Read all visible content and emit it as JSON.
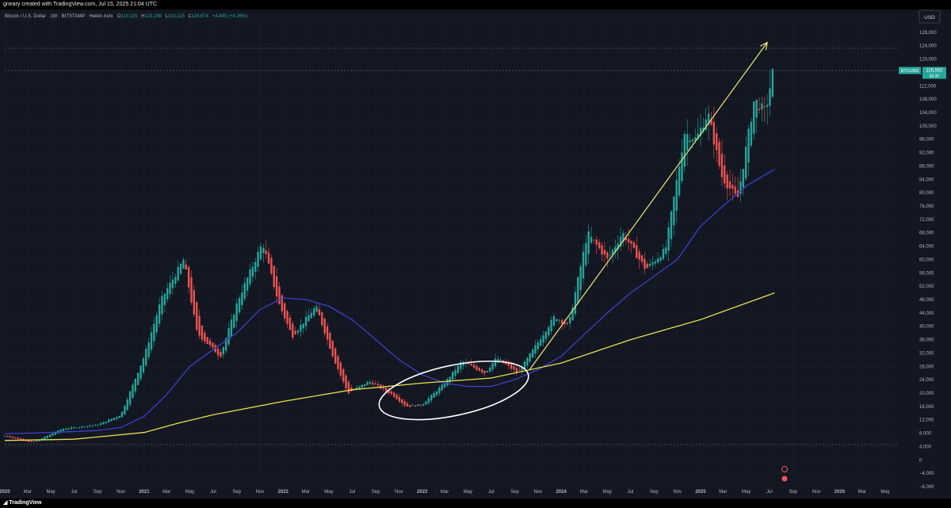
{
  "header": {
    "attribution": "gneary created with TradingView.com, Jul 15, 2025 21:04 UTC"
  },
  "footer": {
    "brand": "TradingView"
  },
  "legend": {
    "symbol_desc": "Bitcoin / U.S. Dollar · 1W · BITSTAMP · Heikin Ashi",
    "o_label": "O",
    "o_value": "110,115",
    "h_label": "H",
    "h_value": "123,236",
    "l_label": "L",
    "l_value": "110,115",
    "c_label": "C",
    "c_value": "116,674",
    "change": "+4,845 (+4.26%)"
  },
  "currency_button": "USD",
  "price_tag": {
    "symbol": "BTCUSD",
    "price": "116,592",
    "countdown": "5d 3h"
  },
  "colors": {
    "background": "#131722",
    "up": "#26a69a",
    "down": "#ef5350",
    "ma_short": "#3f3fc8",
    "ma_long": "#e8e04c",
    "arrow": "#efe87a",
    "ellipse": "#ffffff"
  },
  "chart_data": {
    "type": "candlestick",
    "style": "Heikin Ashi",
    "timeframe": "1W",
    "y_axis": {
      "range": [
        -8000,
        132000
      ],
      "ticks": [
        -8000,
        -4000,
        0,
        4000,
        8000,
        12000,
        16000,
        20000,
        24000,
        28000,
        32000,
        36000,
        40000,
        44000,
        48000,
        52000,
        56000,
        60000,
        64000,
        68000,
        72000,
        76000,
        80000,
        84000,
        88000,
        92000,
        96000,
        100000,
        104000,
        108000,
        112000,
        116000,
        120000,
        124000,
        128000,
        132000
      ]
    },
    "x_axis": {
      "range": [
        "2020-01-01",
        "2026-06-01"
      ],
      "ticks": [
        {
          "date": "2020-01-01",
          "label": "2020",
          "bold": true
        },
        {
          "date": "2020-03-01",
          "label": "Mar"
        },
        {
          "date": "2020-05-01",
          "label": "May"
        },
        {
          "date": "2020-07-01",
          "label": "Jul"
        },
        {
          "date": "2020-09-01",
          "label": "Sep"
        },
        {
          "date": "2020-11-01",
          "label": "Nov"
        },
        {
          "date": "2021-01-01",
          "label": "2021",
          "bold": true
        },
        {
          "date": "2021-03-01",
          "label": "Mar"
        },
        {
          "date": "2021-05-01",
          "label": "May"
        },
        {
          "date": "2021-07-01",
          "label": "Jul"
        },
        {
          "date": "2021-09-01",
          "label": "Sep"
        },
        {
          "date": "2021-11-01",
          "label": "Nov"
        },
        {
          "date": "2022-01-01",
          "label": "2022",
          "bold": true
        },
        {
          "date": "2022-03-01",
          "label": "Mar"
        },
        {
          "date": "2022-05-01",
          "label": "May"
        },
        {
          "date": "2022-07-01",
          "label": "Jul"
        },
        {
          "date": "2022-09-01",
          "label": "Sep"
        },
        {
          "date": "2022-11-01",
          "label": "Nov"
        },
        {
          "date": "2023-01-01",
          "label": "2023",
          "bold": true
        },
        {
          "date": "2023-03-01",
          "label": "Mar"
        },
        {
          "date": "2023-05-01",
          "label": "May"
        },
        {
          "date": "2023-07-01",
          "label": "Jul"
        },
        {
          "date": "2023-09-01",
          "label": "Sep"
        },
        {
          "date": "2023-11-01",
          "label": "Nov"
        },
        {
          "date": "2024-01-01",
          "label": "2024",
          "bold": true
        },
        {
          "date": "2024-03-01",
          "label": "Mar"
        },
        {
          "date": "2024-05-01",
          "label": "May"
        },
        {
          "date": "2024-07-01",
          "label": "Jul"
        },
        {
          "date": "2024-09-01",
          "label": "Sep"
        },
        {
          "date": "2024-11-01",
          "label": "Nov"
        },
        {
          "date": "2025-01-01",
          "label": "2025",
          "bold": true
        },
        {
          "date": "2025-03-01",
          "label": "Mar"
        },
        {
          "date": "2025-05-01",
          "label": "May"
        },
        {
          "date": "2025-07-01",
          "label": "Jul"
        },
        {
          "date": "2025-09-01",
          "label": "Sep"
        },
        {
          "date": "2025-11-01",
          "label": "Nov"
        },
        {
          "date": "2026-01-01",
          "label": "2026",
          "bold": true
        },
        {
          "date": "2026-03-01",
          "label": "Mar"
        },
        {
          "date": "2026-05-01",
          "label": "May"
        }
      ]
    },
    "price_key_points": [
      [
        "2020-01-01",
        7200
      ],
      [
        "2020-03-15",
        5200
      ],
      [
        "2020-06-01",
        9300
      ],
      [
        "2020-09-01",
        10500
      ],
      [
        "2020-11-01",
        13500
      ],
      [
        "2021-01-01",
        31000
      ],
      [
        "2021-02-15",
        48000
      ],
      [
        "2021-04-15",
        60000
      ],
      [
        "2021-05-20",
        38000
      ],
      [
        "2021-07-20",
        31000
      ],
      [
        "2021-09-05",
        48000
      ],
      [
        "2021-11-08",
        65000
      ],
      [
        "2021-12-20",
        47000
      ],
      [
        "2022-01-25",
        37000
      ],
      [
        "2022-03-28",
        46000
      ],
      [
        "2022-05-15",
        30000
      ],
      [
        "2022-06-20",
        20000
      ],
      [
        "2022-08-15",
        23500
      ],
      [
        "2022-10-15",
        19500
      ],
      [
        "2022-11-20",
        16000
      ],
      [
        "2022-12-31",
        16500
      ],
      [
        "2023-03-01",
        23000
      ],
      [
        "2023-04-15",
        29500
      ],
      [
        "2023-06-15",
        26000
      ],
      [
        "2023-07-15",
        30500
      ],
      [
        "2023-09-10",
        26000
      ],
      [
        "2023-10-25",
        34000
      ],
      [
        "2023-12-15",
        43000
      ],
      [
        "2024-01-20",
        40000
      ],
      [
        "2024-03-10",
        68000
      ],
      [
        "2024-05-01",
        60000
      ],
      [
        "2024-06-10",
        68000
      ],
      [
        "2024-08-10",
        57000
      ],
      [
        "2024-10-01",
        63000
      ],
      [
        "2024-11-20",
        98000
      ],
      [
        "2024-12-20",
        96000
      ],
      [
        "2025-01-20",
        104000
      ],
      [
        "2025-02-25",
        85000
      ],
      [
        "2025-04-08",
        78000
      ],
      [
        "2025-05-22",
        108000
      ],
      [
        "2025-06-20",
        104000
      ],
      [
        "2025-07-14",
        119000
      ]
    ],
    "series": [
      {
        "kind": "moving_average",
        "color": "#3f3fc8",
        "points": [
          [
            "2020-01-01",
            7800
          ],
          [
            "2020-05-01",
            8200
          ],
          [
            "2020-09-01",
            8800
          ],
          [
            "2020-11-01",
            9700
          ],
          [
            "2021-01-01",
            13000
          ],
          [
            "2021-03-01",
            19500
          ],
          [
            "2021-05-01",
            28000
          ],
          [
            "2021-07-01",
            33000
          ],
          [
            "2021-09-01",
            38000
          ],
          [
            "2021-11-01",
            45000
          ],
          [
            "2022-01-01",
            48500
          ],
          [
            "2022-03-01",
            48000
          ],
          [
            "2022-05-01",
            46000
          ],
          [
            "2022-07-01",
            42000
          ],
          [
            "2022-09-01",
            36000
          ],
          [
            "2022-11-01",
            30000
          ],
          [
            "2023-01-01",
            25500
          ],
          [
            "2023-03-01",
            23000
          ],
          [
            "2023-05-01",
            22000
          ],
          [
            "2023-07-01",
            22000
          ],
          [
            "2023-09-01",
            24000
          ],
          [
            "2023-11-01",
            27000
          ],
          [
            "2024-01-01",
            31000
          ],
          [
            "2024-03-01",
            37500
          ],
          [
            "2024-05-01",
            44000
          ],
          [
            "2024-07-01",
            50000
          ],
          [
            "2024-09-01",
            55000
          ],
          [
            "2024-11-01",
            60000
          ],
          [
            "2025-01-01",
            70000
          ],
          [
            "2025-03-01",
            76000
          ],
          [
            "2025-05-01",
            82000
          ],
          [
            "2025-07-14",
            87000
          ]
        ]
      },
      {
        "kind": "moving_average",
        "color": "#e8e04c",
        "points": [
          [
            "2020-01-01",
            5800
          ],
          [
            "2020-07-01",
            6200
          ],
          [
            "2021-01-01",
            8200
          ],
          [
            "2021-04-01",
            11000
          ],
          [
            "2021-07-01",
            13500
          ],
          [
            "2022-01-01",
            17500
          ],
          [
            "2022-07-01",
            21000
          ],
          [
            "2023-01-01",
            23000
          ],
          [
            "2023-07-01",
            24500
          ],
          [
            "2024-01-01",
            29000
          ],
          [
            "2024-07-01",
            36000
          ],
          [
            "2025-01-01",
            42000
          ],
          [
            "2025-07-14",
            50000
          ]
        ]
      }
    ],
    "annotations": [
      {
        "type": "arrow",
        "from": [
          "2023-10-10",
          27000
        ],
        "to": [
          "2025-06-25",
          125000
        ]
      },
      {
        "type": "ellipse",
        "center": [
          "2023-03-25",
          20800
        ],
        "radii_days": 200,
        "radii_price": 7500,
        "rotation_deg": -12
      },
      {
        "type": "horizontal_line",
        "price": 123236
      },
      {
        "type": "horizontal_line",
        "price": 116592
      },
      {
        "type": "horizontal_line",
        "price": 4600
      }
    ]
  }
}
